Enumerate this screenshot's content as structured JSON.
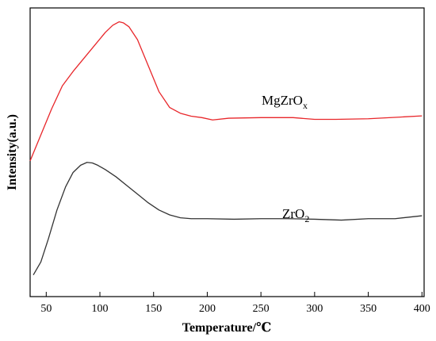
{
  "chart_data": {
    "type": "line",
    "xlabel": "Temperature/℃",
    "ylabel": "Intensity(a.u.)",
    "xlim": [
      35,
      402
    ],
    "ylim": [
      0,
      1
    ],
    "x_ticks": [
      50,
      100,
      150,
      200,
      250,
      300,
      350,
      400
    ],
    "y_ticks_shown": false,
    "grid": false,
    "legend": "none",
    "series": [
      {
        "name": "MgZrOx",
        "label_text": "MgZrO",
        "label_sub": "x",
        "color": "#e8262a",
        "x": [
          35,
          45,
          55,
          65,
          75,
          85,
          95,
          105,
          112,
          118,
          122,
          127,
          135,
          145,
          155,
          165,
          175,
          185,
          195,
          205,
          220,
          250,
          280,
          300,
          320,
          350,
          380,
          400
        ],
        "y": [
          0.47,
          0.56,
          0.65,
          0.73,
          0.78,
          0.825,
          0.87,
          0.915,
          0.94,
          0.952,
          0.948,
          0.935,
          0.89,
          0.8,
          0.71,
          0.655,
          0.635,
          0.625,
          0.62,
          0.612,
          0.618,
          0.62,
          0.62,
          0.614,
          0.614,
          0.616,
          0.622,
          0.626
        ]
      },
      {
        "name": "ZrO2",
        "label_text": "ZrO",
        "label_sub": "2",
        "color": "#333333",
        "x": [
          38,
          45,
          52,
          60,
          68,
          75,
          82,
          88,
          93,
          98,
          105,
          115,
          125,
          135,
          145,
          155,
          165,
          175,
          185,
          200,
          225,
          250,
          275,
          300,
          325,
          350,
          375,
          400
        ],
        "y": [
          0.075,
          0.12,
          0.2,
          0.3,
          0.38,
          0.43,
          0.455,
          0.465,
          0.463,
          0.455,
          0.44,
          0.415,
          0.385,
          0.355,
          0.325,
          0.3,
          0.283,
          0.273,
          0.27,
          0.27,
          0.268,
          0.27,
          0.27,
          0.268,
          0.265,
          0.27,
          0.27,
          0.28
        ]
      }
    ]
  }
}
